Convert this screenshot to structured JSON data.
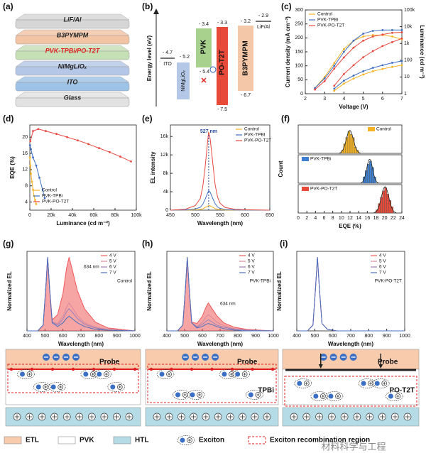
{
  "panel_labels": [
    "(a)",
    "(b)",
    "(c)",
    "(d)",
    "(e)",
    "(f)",
    "(g)",
    "(h)",
    "(i)"
  ],
  "device_stack": {
    "layers": [
      {
        "name": "LiF/Al",
        "color": "#d6d6d6",
        "text_color": "#222222"
      },
      {
        "name": "B3PYMPM",
        "color": "#f2c4a4",
        "text_color": "#222222"
      },
      {
        "name": "PVK-TPBi/PO-T2T",
        "color": "#c5e0b4",
        "text_color": "#e02020"
      },
      {
        "name": "NiMgLiOₓ",
        "color": "#b4c7e7",
        "text_color": "#222222"
      },
      {
        "name": "ITO",
        "color": "#9dc3e6",
        "text_color": "#222222"
      },
      {
        "name": "Glass",
        "color": "#e2e2e2",
        "text_color": "#222222"
      }
    ]
  },
  "energy_diagram": {
    "ylabel": "Energy level (eV)",
    "levels": [
      {
        "name": "ITO",
        "top": "- 4.7"
      },
      {
        "name": "NiMgLiOₓ",
        "top": "- 5.2"
      },
      {
        "name": "PVK",
        "top": "- 3.4",
        "bottom": "- 5.4"
      },
      {
        "name": "PO-T2T",
        "top": "- 3.3",
        "bottom": "- 7.5"
      },
      {
        "name": "B3PYMPM",
        "top": "- 3.2",
        "bottom": "- 6.7"
      },
      {
        "name": "LiF/Al",
        "top": "- 2.9"
      }
    ]
  },
  "chart_data": [
    {
      "type": "line",
      "xlabel": "Voltage (V)",
      "ylabel": "Current density (mA cm⁻²)",
      "y2label": "Luminance (cd m⁻²)",
      "x": [
        2.5,
        3,
        3.5,
        4,
        4.5,
        5,
        5.5,
        6,
        6.5,
        7
      ],
      "xlim": [
        2,
        7
      ],
      "xticks": [
        2,
        3,
        4,
        5,
        6,
        7
      ],
      "ylim": [
        0,
        300
      ],
      "yticks": [
        0,
        50,
        100,
        150,
        200,
        250,
        300
      ],
      "y2lim": [
        1,
        100000
      ],
      "y2log": true,
      "y2ticks": [
        1,
        10,
        100,
        {
          "value": 1000,
          "label": "1k"
        },
        {
          "value": 10000,
          "label": "10k"
        },
        {
          "value": 100000,
          "label": "100k"
        }
      ],
      "legend_loc": "upper left",
      "markers": true,
      "series": [
        {
          "name": "Control",
          "color": "#f5b324",
          "values": [
            20,
            60,
            110,
            160,
            190,
            205,
            210,
            210,
            205,
            195
          ]
        },
        {
          "name": "PVK-TPBi",
          "color": "#3f6fbf",
          "values": [
            20,
            55,
            100,
            150,
            190,
            215,
            225,
            228,
            228,
            228
          ]
        },
        {
          "name": "PVK-PO-T2T",
          "color": "#e8483f",
          "values": [
            15,
            45,
            90,
            130,
            165,
            190,
            205,
            212,
            218,
            220
          ]
        },
        {
          "axis": "y2",
          "color": "#f5b324",
          "values": [
            null,
            null,
            1.5,
            4,
            8,
            14,
            22,
            30,
            40,
            50
          ]
        },
        {
          "axis": "y2",
          "color": "#3f6fbf",
          "values": [
            null,
            null,
            2,
            6,
            12,
            22,
            35,
            50,
            70,
            90
          ]
        },
        {
          "axis": "y2",
          "color": "#e8483f",
          "values": [
            null,
            null,
            3,
            15,
            50,
            150,
            350,
            700,
            1200,
            2000
          ]
        }
      ]
    },
    {
      "type": "line",
      "xlabel": "Luminance (cd m⁻²)",
      "ylabel": "EQE (%)",
      "xlim": [
        0,
        100000
      ],
      "xticks": [
        0,
        {
          "value": 20000,
          "label": "20k"
        },
        {
          "value": 40000,
          "label": "40k"
        },
        {
          "value": 60000,
          "label": "60k"
        },
        {
          "value": 80000,
          "label": "80k"
        },
        {
          "value": 100000,
          "label": "100k"
        }
      ],
      "ylim": [
        2,
        23
      ],
      "yticks": [
        4,
        8,
        12,
        16,
        20
      ],
      "legend_loc": "lower left",
      "markers": true,
      "series": [
        {
          "name": "Control",
          "color": "#f5b324",
          "x": [
            100,
            500,
            1000,
            2000,
            3000,
            4000,
            5000,
            6000
          ],
          "values": [
            15,
            13,
            11,
            9,
            7,
            5.5,
            4.5,
            3.5
          ]
        },
        {
          "name": "PVK-TPBi",
          "color": "#3f6fbf",
          "x": [
            200,
            1000,
            3000,
            6000,
            9000,
            12000,
            14000
          ],
          "values": [
            18,
            17,
            15,
            13,
            10,
            7,
            5
          ]
        },
        {
          "name": "PVK-PO-T2T",
          "color": "#e8483f",
          "x": [
            500,
            3000,
            8000,
            15000,
            25000,
            35000,
            45000,
            55000,
            65000,
            75000,
            85000,
            95000
          ],
          "values": [
            19,
            21.5,
            22,
            21.5,
            20.8,
            20,
            19.2,
            18.3,
            17.3,
            16.3,
            15.2,
            14
          ]
        }
      ]
    },
    {
      "type": "line",
      "xlabel": "Wavelength (nm)",
      "ylabel": "EL intensity",
      "annotation": "527 nm",
      "x": [
        450,
        480,
        500,
        510,
        515,
        520,
        525,
        527,
        530,
        535,
        540,
        545,
        550,
        560,
        580,
        600,
        650
      ],
      "xlim": [
        450,
        650
      ],
      "xticks": [
        450,
        500,
        550,
        600,
        650
      ],
      "ylim": [
        0,
        18500
      ],
      "yticks": [
        0,
        {
          "value": 4000,
          "label": "4k"
        },
        {
          "value": 8000,
          "label": "8k"
        },
        {
          "value": 12000,
          "label": "12k"
        },
        {
          "value": 16000,
          "label": "16k"
        }
      ],
      "legend_loc": "upper right",
      "series": [
        {
          "name": "Control",
          "color": "#f5b324",
          "values": [
            0,
            10,
            60,
            150,
            300,
            570,
            900,
            1000,
            930,
            630,
            330,
            170,
            90,
            40,
            10,
            5,
            0
          ]
        },
        {
          "name": "PVK-TPBI",
          "color": "#3f6fbf",
          "values": [
            0,
            50,
            250,
            620,
            1250,
            2400,
            3750,
            4250,
            3900,
            2600,
            1400,
            700,
            380,
            150,
            50,
            20,
            0
          ]
        },
        {
          "name": "PVK-PO-T2T",
          "color": "#e8483f",
          "values": [
            0,
            200,
            1000,
            2500,
            5000,
            9500,
            15000,
            17000,
            15500,
            10500,
            5500,
            2800,
            1500,
            600,
            200,
            100,
            0
          ]
        }
      ]
    },
    {
      "type": "histogram",
      "bins": [
        10,
        10.5,
        11,
        11.5,
        12,
        12.5,
        13,
        13.5,
        14
      ],
      "xlim": [
        0,
        24
      ],
      "ylim": [
        0,
        9
      ],
      "legend_loc": "upper right",
      "series": [
        {
          "name": "Control",
          "color": "#f5b324",
          "values": [
            1,
            3,
            5,
            7,
            6,
            5,
            2,
            1
          ]
        }
      ]
    },
    {
      "type": "histogram",
      "bins": [
        15,
        15.5,
        16,
        16.5,
        17,
        17.5,
        18
      ],
      "xlim": [
        0,
        24
      ],
      "ylim": [
        0,
        9
      ],
      "legend_loc": "upper left",
      "ylabel": "Count",
      "series": [
        {
          "name": "PVK-TPBi",
          "color": "#3f7fcf",
          "values": [
            2,
            4,
            6,
            7,
            5,
            2
          ]
        }
      ]
    },
    {
      "type": "histogram",
      "bins": [
        18,
        18.5,
        19,
        19.5,
        20,
        20.5,
        21,
        21.5,
        22
      ],
      "xlim": [
        0,
        24
      ],
      "ylim": [
        0,
        9
      ],
      "legend_loc": "upper left",
      "xlabel": "EQE (%)",
      "xticks": [
        0,
        2,
        4,
        6,
        8,
        10,
        12,
        14,
        16,
        18,
        20,
        22,
        24
      ],
      "series": [
        {
          "name": "PVK-PO-T2T",
          "color": "#e84a3a",
          "values": [
            1,
            3,
            5,
            7,
            8,
            6,
            4,
            2
          ]
        }
      ]
    },
    {
      "type": "line",
      "xlabel": "Wavelength (nm)",
      "ylabel": "Normalized EL",
      "subtitle": "Control",
      "annotation": "634 nm",
      "x": [
        400,
        460,
        490,
        505,
        515,
        525,
        540,
        570,
        600,
        620,
        634,
        650,
        680,
        720,
        780,
        850,
        1000
      ],
      "xlim": [
        400,
        1000
      ],
      "xticks": [
        400,
        500,
        600,
        700,
        800,
        900,
        1000
      ],
      "ylim": [
        0,
        1.08
      ],
      "legend_loc": "upper right",
      "series": [
        {
          "name": "4 V",
          "color": "#ef5a5a",
          "fill": true,
          "values": [
            0,
            0,
            0.08,
            0.6,
            1,
            0.6,
            0.15,
            0.22,
            0.51,
            0.85,
            1,
            0.85,
            0.55,
            0.3,
            0.12,
            0.04,
            0
          ]
        },
        {
          "name": "5 V",
          "color": "#d98a9a",
          "values": [
            0,
            0,
            0.08,
            0.6,
            1,
            0.6,
            0.12,
            0.1,
            0.2,
            0.32,
            0.38,
            0.32,
            0.21,
            0.11,
            0.05,
            0.02,
            0
          ]
        },
        {
          "name": "6 V",
          "color": "#9a7fb8",
          "values": [
            0,
            0,
            0.08,
            0.6,
            1,
            0.6,
            0.12,
            0.08,
            0.16,
            0.26,
            0.3,
            0.26,
            0.17,
            0.09,
            0.04,
            0.01,
            0
          ]
        },
        {
          "name": "7 V",
          "color": "#4a70c0",
          "values": [
            0,
            0,
            0.08,
            0.6,
            1,
            0.6,
            0.11,
            0.06,
            0.11,
            0.17,
            0.2,
            0.17,
            0.11,
            0.06,
            0.02,
            0.01,
            0
          ]
        }
      ]
    },
    {
      "type": "line",
      "xlabel": "Wavelength (nm)",
      "ylabel": "Normalized EL",
      "subtitle": "PVK-TPBi",
      "annotation": "634 nm",
      "x": [
        400,
        460,
        490,
        505,
        515,
        525,
        540,
        570,
        600,
        620,
        634,
        650,
        680,
        720,
        780,
        850,
        1000
      ],
      "xlim": [
        400,
        1000
      ],
      "xticks": [
        400,
        500,
        600,
        700,
        800,
        900,
        1000
      ],
      "ylim": [
        0,
        1.08
      ],
      "legend_loc": "upper right",
      "series": [
        {
          "name": "4 V",
          "color": "#ef5a5a",
          "fill": true,
          "values": [
            0,
            0,
            0.08,
            0.6,
            1,
            0.6,
            0.12,
            0.1,
            0.2,
            0.32,
            0.38,
            0.32,
            0.21,
            0.11,
            0.05,
            0.02,
            0
          ]
        },
        {
          "name": "5 V",
          "color": "#d98a9a",
          "values": [
            0,
            0,
            0.08,
            0.6,
            1,
            0.6,
            0.11,
            0.06,
            0.12,
            0.19,
            0.22,
            0.19,
            0.12,
            0.07,
            0.03,
            0.01,
            0
          ]
        },
        {
          "name": "6 V",
          "color": "#9a7fb8",
          "values": [
            0,
            0,
            0.08,
            0.6,
            1,
            0.6,
            0.11,
            0.05,
            0.09,
            0.13,
            0.15,
            0.13,
            0.08,
            0.05,
            0.02,
            0.01,
            0
          ]
        },
        {
          "name": "7 V",
          "color": "#4a70c0",
          "values": [
            0,
            0,
            0.08,
            0.6,
            1,
            0.6,
            0.11,
            0.04,
            0.06,
            0.09,
            0.1,
            0.09,
            0.06,
            0.03,
            0.01,
            0,
            0
          ]
        }
      ]
    },
    {
      "type": "line",
      "xlabel": "Wavelength (nm)",
      "ylabel": "Normalized EL",
      "subtitle": "PVK-PO-T2T",
      "x": [
        400,
        460,
        490,
        505,
        515,
        525,
        540,
        570,
        600,
        620,
        634,
        650,
        680,
        720,
        780,
        850,
        1000
      ],
      "xlim": [
        400,
        1000
      ],
      "xticks": [
        400,
        500,
        600,
        700,
        800,
        900,
        1000
      ],
      "ylim": [
        0,
        1.08
      ],
      "legend_loc": "upper right",
      "series": [
        {
          "name": "4 V",
          "color": "#ef5a5a",
          "values": [
            0,
            0,
            0.08,
            0.6,
            1,
            0.6,
            0.1,
            0.02,
            0.01,
            0,
            0,
            0,
            0,
            0,
            0,
            0,
            0
          ]
        },
        {
          "name": "5 V",
          "color": "#d98a9a",
          "values": [
            0,
            0,
            0.08,
            0.6,
            1,
            0.6,
            0.1,
            0.02,
            0.01,
            0,
            0,
            0,
            0,
            0,
            0,
            0,
            0
          ]
        },
        {
          "name": "6 V",
          "color": "#9a7fb8",
          "values": [
            0,
            0,
            0.08,
            0.61,
            1,
            0.6,
            0.1,
            0.02,
            0.01,
            0,
            0,
            0,
            0,
            0,
            0,
            0,
            0
          ]
        },
        {
          "name": "7 V",
          "color": "#4a70c0",
          "values": [
            0,
            0,
            0.08,
            0.62,
            1,
            0.61,
            0.1,
            0.02,
            0.01,
            0,
            0,
            0,
            0,
            0,
            0,
            0,
            0
          ]
        }
      ]
    }
  ],
  "schematic": {
    "panels": [
      {
        "probe": "Probe"
      },
      {
        "probe": "Probe",
        "layer": "TPBi"
      },
      {
        "probe": "Probe",
        "layer": "PO-T2T"
      }
    ],
    "legend": [
      "ETL",
      "PVK",
      "HTL",
      "Exciton",
      "Exciton recombination region"
    ],
    "watermark": "材料科学与工程"
  }
}
